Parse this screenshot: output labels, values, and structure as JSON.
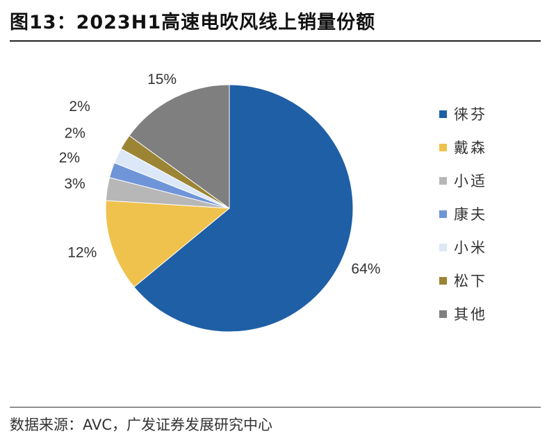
{
  "header": {
    "title": "图13：2023H1高速电吹风线上销量份额"
  },
  "footer": {
    "source": "数据来源：AVC，广发证券发展研究中心"
  },
  "chart_data": {
    "type": "pie",
    "title": "图13：2023H1高速电吹风线上销量份额",
    "categories": [
      "徕芬",
      "戴森",
      "小适",
      "康夫",
      "小米",
      "松下",
      "其他"
    ],
    "values": [
      64,
      12,
      3,
      2,
      2,
      2,
      15
    ],
    "value_labels": [
      "64%",
      "12%",
      "3%",
      "2%",
      "2%",
      "2%",
      "15%"
    ],
    "colors": [
      "#1F5FA6",
      "#EFC24E",
      "#B7B7B7",
      "#6F95D8",
      "#DCE8F7",
      "#9B8433",
      "#7F7F7F"
    ],
    "legend_position": "right"
  }
}
